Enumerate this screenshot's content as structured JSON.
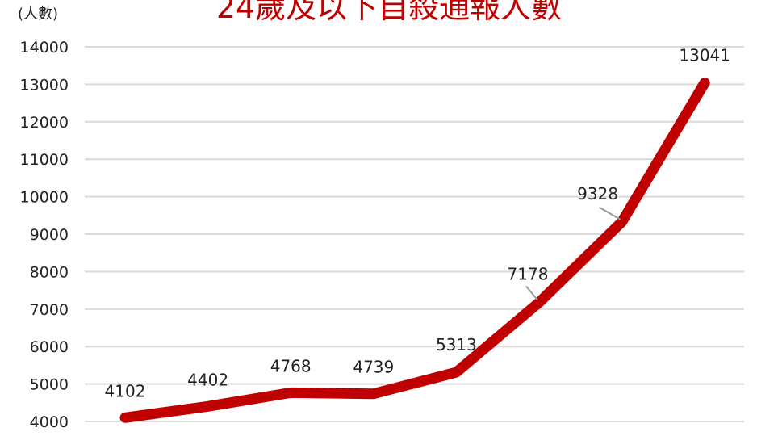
{
  "chart_data": {
    "type": "line",
    "title": "24歲及以下自殺通報人數",
    "ylabel": "(人數)",
    "xlabel": "",
    "ylim": [
      4000,
      14000
    ],
    "yticks": [
      4000,
      5000,
      6000,
      7000,
      8000,
      9000,
      10000,
      11000,
      12000,
      13000,
      14000
    ],
    "grid": true,
    "values": [
      4102,
      4402,
      4768,
      4739,
      5313,
      7178,
      9328,
      13041
    ],
    "line_color": "#c00000"
  }
}
